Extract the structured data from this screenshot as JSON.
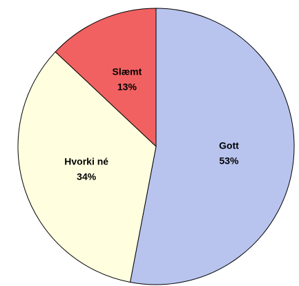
{
  "chart_data": {
    "type": "pie",
    "categories": [
      "Gott",
      "Hvorki né",
      "Slæmt"
    ],
    "values": [
      53,
      34,
      13
    ],
    "value_labels": [
      "53%",
      "34%",
      "13%"
    ],
    "colors": [
      "#b8c4ee",
      "#ffffe0",
      "#f26161"
    ]
  }
}
